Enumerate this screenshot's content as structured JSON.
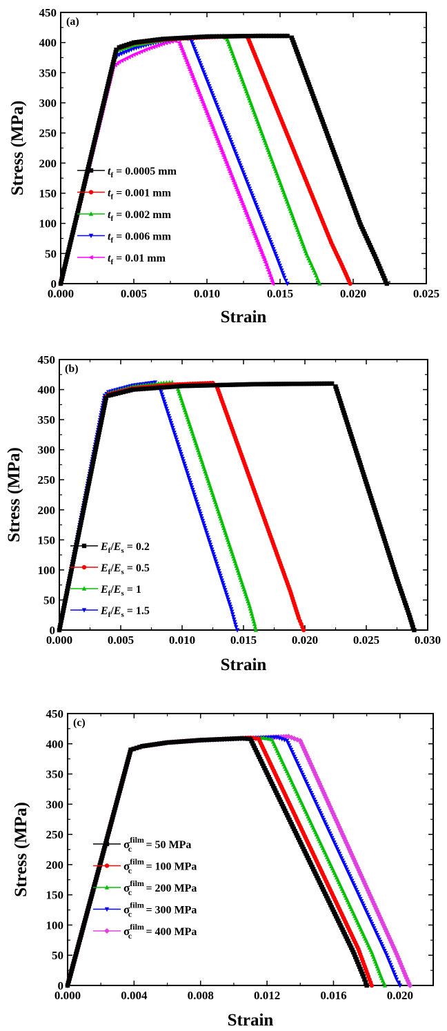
{
  "chart_data": [
    {
      "type": "line",
      "panel_label": "(a)",
      "xlabel": "Strain",
      "ylabel": "Stress (MPa)",
      "xlim": [
        0,
        0.025
      ],
      "ylim": [
        0,
        450
      ],
      "xticks": [
        0,
        0.005,
        0.01,
        0.015,
        0.02,
        0.025
      ],
      "xtick_labels": [
        "0.000",
        "0.005",
        "0.010",
        "0.015",
        "0.020",
        "0.025"
      ],
      "yticks": [
        0,
        50,
        100,
        150,
        200,
        250,
        300,
        350,
        400,
        450
      ],
      "ytick_labels": [
        "0",
        "50",
        "100",
        "150",
        "200",
        "250",
        "300",
        "350",
        "400",
        "450"
      ],
      "grid": false,
      "legend_position": "center-left",
      "series": [
        {
          "name": "t_f = 0.0005 mm",
          "label": {
            "sym": "t",
            "sub": "f",
            "text": " = 0.0005 mm"
          },
          "color": "#000000",
          "marker": "square",
          "points": [
            [
              0,
              0
            ],
            [
              0.0038,
              388
            ],
            [
              0.004,
              392
            ],
            [
              0.005,
              400
            ],
            [
              0.007,
              406
            ],
            [
              0.01,
              410
            ],
            [
              0.0135,
              411
            ],
            [
              0.0155,
              411
            ],
            [
              0.0158,
              408
            ],
            [
              0.0205,
              98
            ],
            [
              0.0215,
              45
            ],
            [
              0.0222,
              5
            ],
            [
              0.0223,
              0
            ]
          ]
        },
        {
          "name": "t_f = 0.001 mm",
          "label": {
            "sym": "t",
            "sub": "f",
            "text": " = 0.001 mm"
          },
          "color": "#ff0000",
          "marker": "circle",
          "points": [
            [
              0,
              0
            ],
            [
              0.0038,
              386
            ],
            [
              0.004,
              391
            ],
            [
              0.005,
              399
            ],
            [
              0.007,
              405
            ],
            [
              0.01,
              409
            ],
            [
              0.0125,
              411
            ],
            [
              0.0128,
              408
            ],
            [
              0.0185,
              68
            ],
            [
              0.0192,
              32
            ],
            [
              0.0197,
              5
            ],
            [
              0.0198,
              0
            ]
          ]
        },
        {
          "name": "t_f = 0.002 mm",
          "label": {
            "sym": "t",
            "sub": "f",
            "text": " = 0.002 mm"
          },
          "color": "#00c000",
          "marker": "triangle-up",
          "points": [
            [
              0,
              0
            ],
            [
              0.0038,
              384
            ],
            [
              0.004,
              388
            ],
            [
              0.005,
              396
            ],
            [
              0.007,
              404
            ],
            [
              0.009,
              409
            ],
            [
              0.0111,
              411
            ],
            [
              0.0114,
              405
            ],
            [
              0.0168,
              50
            ],
            [
              0.0174,
              18
            ],
            [
              0.0177,
              0
            ]
          ]
        },
        {
          "name": "t_f = 0.006 mm",
          "label": {
            "sym": "t",
            "sub": "f",
            "text": " = 0.006 mm"
          },
          "color": "#0000ff",
          "marker": "triangle-down",
          "points": [
            [
              0,
              0
            ],
            [
              0.0037,
              375
            ],
            [
              0.004,
              380
            ],
            [
              0.005,
              390
            ],
            [
              0.006,
              397
            ],
            [
              0.007,
              403
            ],
            [
              0.0085,
              408
            ],
            [
              0.0089,
              405
            ],
            [
              0.0148,
              42
            ],
            [
              0.0153,
              10
            ],
            [
              0.0155,
              0
            ]
          ]
        },
        {
          "name": "t_f = 0.01 mm",
          "label": {
            "sym": "t",
            "sub": "f",
            "text": " = 0.01 mm"
          },
          "color": "#ff00ff",
          "marker": "triangle-left",
          "points": [
            [
              0,
              0
            ],
            [
              0.0036,
              360
            ],
            [
              0.004,
              368
            ],
            [
              0.005,
              380
            ],
            [
              0.006,
              390
            ],
            [
              0.007,
              398
            ],
            [
              0.0078,
              403
            ],
            [
              0.0081,
              400
            ],
            [
              0.014,
              35
            ],
            [
              0.0144,
              8
            ],
            [
              0.0145,
              0
            ]
          ]
        }
      ]
    },
    {
      "type": "line",
      "panel_label": "(b)",
      "xlabel": "Strain",
      "ylabel": "Stress (MPa)",
      "xlim": [
        0,
        0.03
      ],
      "ylim": [
        0,
        450
      ],
      "xticks": [
        0,
        0.005,
        0.01,
        0.015,
        0.02,
        0.025,
        0.03
      ],
      "xtick_labels": [
        "0.000",
        "0.005",
        "0.010",
        "0.015",
        "0.020",
        "0.025",
        "0.030"
      ],
      "yticks": [
        0,
        50,
        100,
        150,
        200,
        250,
        300,
        350,
        400,
        450
      ],
      "ytick_labels": [
        "0",
        "50",
        "100",
        "150",
        "200",
        "250",
        "300",
        "350",
        "400",
        "450"
      ],
      "grid": false,
      "legend_position": "center-left",
      "series": [
        {
          "name": "E_f/E_s = 0.2",
          "label": {
            "sym": "E",
            "sub": "f",
            "mid": "/",
            "sym2": "E",
            "sub2": "s",
            "text": " = 0.2"
          },
          "color": "#000000",
          "marker": "square",
          "points": [
            [
              0,
              0
            ],
            [
              0.0038,
              386
            ],
            [
              0.004,
              390
            ],
            [
              0.006,
              400
            ],
            [
              0.01,
              406
            ],
            [
              0.016,
              409
            ],
            [
              0.0222,
              410
            ],
            [
              0.0225,
              405
            ],
            [
              0.0275,
              85
            ],
            [
              0.0285,
              25
            ],
            [
              0.0288,
              5
            ],
            [
              0.0289,
              0
            ]
          ]
        },
        {
          "name": "E_f/E_s = 0.5",
          "label": {
            "sym": "E",
            "sub": "f",
            "mid": "/",
            "sym2": "E",
            "sub2": "s",
            "text": " = 0.5"
          },
          "color": "#ff0000",
          "marker": "circle",
          "points": [
            [
              0,
              0
            ],
            [
              0.0038,
              388
            ],
            [
              0.004,
              392
            ],
            [
              0.006,
              402
            ],
            [
              0.009,
              408
            ],
            [
              0.0125,
              411
            ],
            [
              0.0128,
              407
            ],
            [
              0.0188,
              65
            ],
            [
              0.0195,
              20
            ],
            [
              0.0198,
              5
            ],
            [
              0.0199,
              0
            ]
          ]
        },
        {
          "name": "E_f/E_s = 1",
          "label": {
            "sym": "E",
            "sub": "f",
            "mid": "/",
            "sym2": "E",
            "sub2": "s",
            "text": " = 1"
          },
          "color": "#00c000",
          "marker": "triangle-up",
          "points": [
            [
              0,
              0
            ],
            [
              0.0038,
              390
            ],
            [
              0.004,
              394
            ],
            [
              0.006,
              405
            ],
            [
              0.0085,
              411
            ],
            [
              0.0092,
              412
            ],
            [
              0.0096,
              405
            ],
            [
              0.0155,
              40
            ],
            [
              0.0159,
              10
            ],
            [
              0.016,
              0
            ]
          ]
        },
        {
          "name": "E_f/E_s = 1.5",
          "label": {
            "sym": "E",
            "sub": "f",
            "mid": "/",
            "sym2": "E",
            "sub2": "s",
            "text": " = 1.5"
          },
          "color": "#0000ff",
          "marker": "triangle-down",
          "points": [
            [
              0,
              0
            ],
            [
              0.0037,
              390
            ],
            [
              0.004,
              396
            ],
            [
              0.006,
              407
            ],
            [
              0.0078,
              412
            ],
            [
              0.0081,
              408
            ],
            [
              0.014,
              35
            ],
            [
              0.0144,
              5
            ],
            [
              0.0145,
              0
            ]
          ]
        }
      ]
    },
    {
      "type": "line",
      "panel_label": "(c)",
      "xlabel": "Strain",
      "ylabel": "Stress (MPa)",
      "xlim": [
        0,
        0.022
      ],
      "ylim": [
        0,
        450
      ],
      "xticks": [
        0,
        0.004,
        0.008,
        0.012,
        0.016,
        0.02
      ],
      "xtick_labels": [
        "0.000",
        "0.004",
        "0.008",
        "0.012",
        "0.016",
        "0.020"
      ],
      "yticks": [
        0,
        50,
        100,
        150,
        200,
        250,
        300,
        350,
        400,
        450
      ],
      "ytick_labels": [
        "0",
        "50",
        "100",
        "150",
        "200",
        "250",
        "300",
        "350",
        "400",
        "450"
      ],
      "grid": false,
      "legend_position": "center-left",
      "series": [
        {
          "name": "σc film = 50 MPa",
          "label": {
            "sym": "σ",
            "sub": "c",
            "sup": "film",
            "text": " = 50 MPa"
          },
          "color": "#000000",
          "marker": "square",
          "points": [
            [
              0,
              0
            ],
            [
              0.0038,
              390
            ],
            [
              0.0045,
              396
            ],
            [
              0.006,
              402
            ],
            [
              0.008,
              406
            ],
            [
              0.0105,
              409
            ],
            [
              0.011,
              408
            ],
            [
              0.0172,
              55
            ],
            [
              0.0178,
              15
            ],
            [
              0.018,
              0
            ]
          ]
        },
        {
          "name": "σc film = 100 MPa",
          "label": {
            "sym": "σ",
            "sub": "c",
            "sup": "film",
            "text": " = 100 MPa"
          },
          "color": "#ff0000",
          "marker": "circle",
          "points": [
            [
              0,
              0
            ],
            [
              0.0038,
              390
            ],
            [
              0.0045,
              396
            ],
            [
              0.006,
              402
            ],
            [
              0.008,
              406
            ],
            [
              0.011,
              410
            ],
            [
              0.0115,
              408
            ],
            [
              0.0175,
              60
            ],
            [
              0.0181,
              15
            ],
            [
              0.0183,
              0
            ]
          ]
        },
        {
          "name": "σc film = 200 MPa",
          "label": {
            "sym": "σ",
            "sub": "c",
            "sup": "film",
            "text": " = 200 MPa"
          },
          "color": "#00c000",
          "marker": "triangle-up",
          "points": [
            [
              0,
              0
            ],
            [
              0.0038,
              390
            ],
            [
              0.0045,
              396
            ],
            [
              0.006,
              402
            ],
            [
              0.008,
              406
            ],
            [
              0.0118,
              410
            ],
            [
              0.0123,
              407
            ],
            [
              0.0183,
              55
            ],
            [
              0.0189,
              12
            ],
            [
              0.0191,
              0
            ]
          ]
        },
        {
          "name": "σc film = 300 MPa",
          "label": {
            "sym": "σ",
            "sub": "c",
            "sup": "film",
            "text": " = 300 MPa"
          },
          "color": "#0000ff",
          "marker": "triangle-down",
          "points": [
            [
              0,
              0
            ],
            [
              0.0038,
              390
            ],
            [
              0.0045,
              396
            ],
            [
              0.006,
              402
            ],
            [
              0.008,
              406
            ],
            [
              0.0126,
              411
            ],
            [
              0.0132,
              405
            ],
            [
              0.0192,
              50
            ],
            [
              0.0198,
              10
            ],
            [
              0.02,
              0
            ]
          ]
        },
        {
          "name": "σc film = 400 MPa",
          "label": {
            "sym": "σ",
            "sub": "c",
            "sup": "film",
            "text": " = 400 MPa"
          },
          "color": "#e040e0",
          "marker": "diamond",
          "points": [
            [
              0,
              0
            ],
            [
              0.0038,
              390
            ],
            [
              0.0045,
              396
            ],
            [
              0.006,
              402
            ],
            [
              0.008,
              406
            ],
            [
              0.0133,
              412
            ],
            [
              0.014,
              405
            ],
            [
              0.0198,
              52
            ],
            [
              0.0204,
              12
            ],
            [
              0.0206,
              0
            ]
          ]
        }
      ]
    }
  ]
}
